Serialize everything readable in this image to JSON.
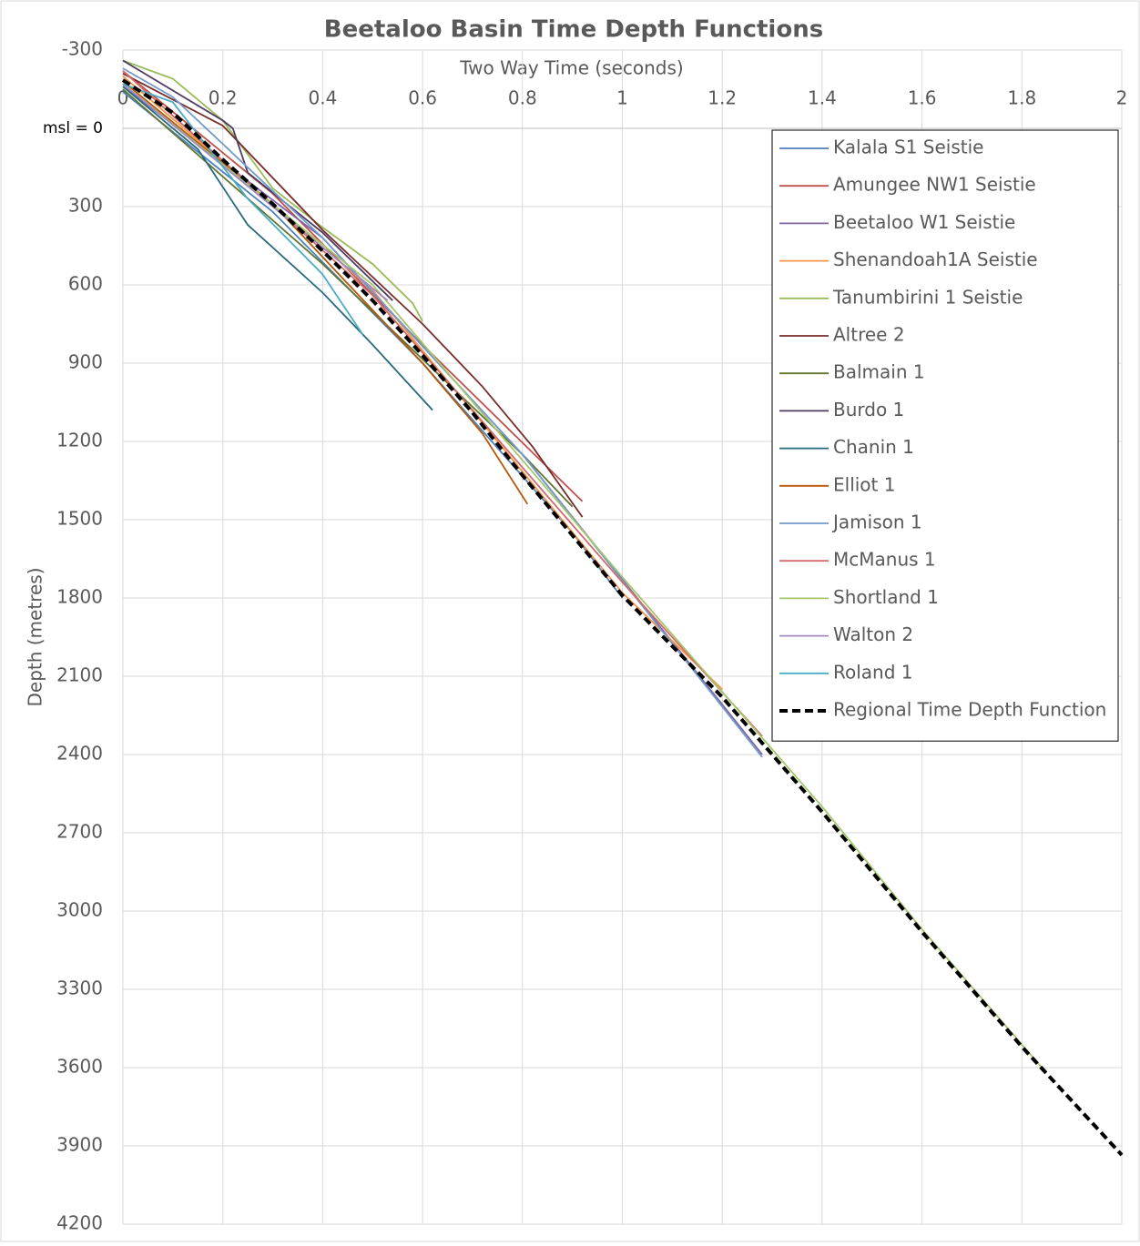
{
  "chart_data": {
    "type": "line",
    "title": "Beetaloo Basin Time Depth Functions",
    "x_label": "Two Way Time (seconds)",
    "y_label": "Depth (metres)",
    "xlim": [
      0,
      2
    ],
    "xticks": [
      0,
      0.2,
      0.4,
      0.6,
      0.8,
      1,
      1.2,
      1.4,
      1.6,
      1.8,
      2
    ],
    "ylim": [
      -300,
      4200
    ],
    "yticks": [
      -300,
      {
        "value": 0,
        "label": "msl = 0"
      },
      300,
      600,
      900,
      1200,
      1500,
      1800,
      2100,
      2400,
      2700,
      3000,
      3300,
      3600,
      3900,
      4200
    ],
    "y_inverted": true,
    "x_axis_position": "top",
    "grid": true,
    "legend": "upper right",
    "series": [
      {
        "name": "Kalala S1 Seistie",
        "color": "#4f81bd",
        "x": [
          0,
          0.3,
          0.6,
          0.9,
          1.0
        ],
        "values": [
          -140,
          320,
          900,
          1550,
          1800
        ]
      },
      {
        "name": "Amungee NW1 Seistie",
        "color": "#c0504d",
        "x": [
          0,
          0.3,
          0.6,
          0.92
        ],
        "values": [
          -220,
          250,
          830,
          1430
        ]
      },
      {
        "name": "Beetaloo W1 Seistie",
        "color": "#8064a2",
        "x": [
          0,
          0.4,
          0.8,
          1.28
        ],
        "values": [
          -160,
          420,
          1250,
          2400
        ]
      },
      {
        "name": "Shenandoah1A Seistie",
        "color": "#f79646",
        "x": [
          0,
          0.5,
          1.0,
          1.2
        ],
        "values": [
          -200,
          620,
          1780,
          2150
        ]
      },
      {
        "name": "Tanumbirini 1 Seistie",
        "color": "#9bbb59",
        "x": [
          0,
          0.1,
          0.2,
          0.3,
          0.4,
          0.5,
          0.58,
          0.6
        ],
        "values": [
          -260,
          -190,
          -30,
          230,
          380,
          520,
          670,
          740
        ]
      },
      {
        "name": "Altree 2",
        "color": "#772c2a",
        "x": [
          0,
          0.2,
          0.4,
          0.6,
          0.72,
          0.82,
          0.92
        ],
        "values": [
          -210,
          -10,
          390,
          750,
          990,
          1220,
          1490
        ]
      },
      {
        "name": "Balmain 1",
        "color": "#5f7530",
        "x": [
          0,
          0.4,
          0.8,
          0.9
        ],
        "values": [
          -150,
          520,
          1250,
          1450
        ]
      },
      {
        "name": "Burdo 1",
        "color": "#4d3b62",
        "x": [
          0,
          0.2,
          0.22,
          0.25,
          0.4,
          0.54
        ],
        "values": [
          -260,
          -30,
          0,
          170,
          400,
          660
        ]
      },
      {
        "name": "Chanin 1",
        "color": "#276a7c",
        "x": [
          0,
          0.15,
          0.25,
          0.4,
          0.5,
          0.62
        ],
        "values": [
          -160,
          80,
          370,
          630,
          830,
          1080
        ]
      },
      {
        "name": "Elliot 1",
        "color": "#b65708",
        "x": [
          0,
          0.3,
          0.6,
          0.72,
          0.81
        ],
        "values": [
          -180,
          290,
          900,
          1170,
          1440
        ]
      },
      {
        "name": "Jamison 1",
        "color": "#729aca",
        "x": [
          0,
          0.1,
          0.4,
          0.8,
          1.28
        ],
        "values": [
          -230,
          -120,
          420,
          1250,
          2410
        ]
      },
      {
        "name": "McManus 1",
        "color": "#d46b6b",
        "x": [
          0,
          0.5,
          1.0,
          1.28
        ],
        "values": [
          -220,
          640,
          1740,
          2330
        ]
      },
      {
        "name": "Shortland 1",
        "color": "#a5c66b",
        "x": [
          0,
          0.5,
          1.0,
          1.4,
          1.6,
          1.84
        ],
        "values": [
          -170,
          600,
          1720,
          2600,
          3070,
          3600
        ]
      },
      {
        "name": "Walton 2",
        "color": "#a08ac1",
        "x": [
          0,
          0.3,
          0.53
        ],
        "values": [
          -170,
          300,
          660
        ]
      },
      {
        "name": "Roland 1",
        "color": "#4bacc6",
        "x": [
          0,
          0.1,
          0.25,
          0.4,
          0.48
        ],
        "values": [
          -170,
          -100,
          270,
          560,
          790
        ]
      },
      {
        "name": "Regional Time Depth Function",
        "color": "#000000",
        "dashed": true,
        "x": [
          0,
          0.1,
          0.2,
          0.3,
          0.4,
          0.5,
          0.6,
          0.7,
          0.8,
          0.9,
          1.0,
          1.2,
          1.4,
          1.6,
          1.8,
          2.0
        ],
        "values": [
          -185,
          -60,
          120,
          290,
          470,
          660,
          870,
          1090,
          1330,
          1560,
          1790,
          2180,
          2620,
          3080,
          3520,
          3935
        ]
      }
    ]
  }
}
